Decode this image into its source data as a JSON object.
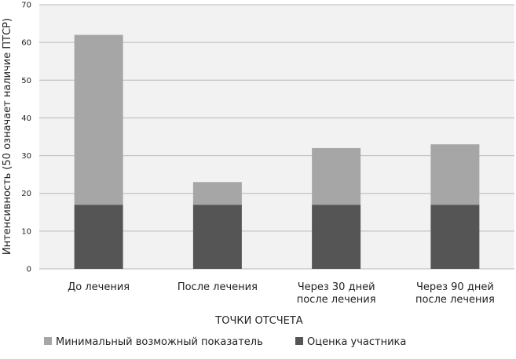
{
  "chart_data": {
    "type": "bar",
    "stacked": true,
    "categories": [
      [
        "До лечения"
      ],
      [
        "После лечения"
      ],
      [
        "Через 30 дней",
        "после лечения"
      ],
      [
        "Через 90 дней",
        "после лечения"
      ]
    ],
    "series": [
      {
        "name": "Оценка участника",
        "values": [
          17,
          17,
          17,
          17
        ],
        "color": "#555555"
      },
      {
        "name": "Минимальный возможный показатель",
        "values": [
          45,
          6,
          15,
          16
        ],
        "color": "#a6a6a6"
      }
    ],
    "totals": [
      62,
      23,
      32,
      33
    ],
    "ylim": [
      0,
      70
    ],
    "yticks": [
      0,
      10,
      20,
      30,
      40,
      50,
      60,
      70
    ],
    "ylabel": "Интенсивность (50 означает наличие ПТСР)",
    "xlabel": "ТОЧКИ ОТСЧЕТА",
    "grid": true,
    "legend_position": "bottom",
    "legend_order": [
      1,
      0
    ],
    "plot_background": "#f2f2f2",
    "grid_color": "#b8b8b8"
  }
}
